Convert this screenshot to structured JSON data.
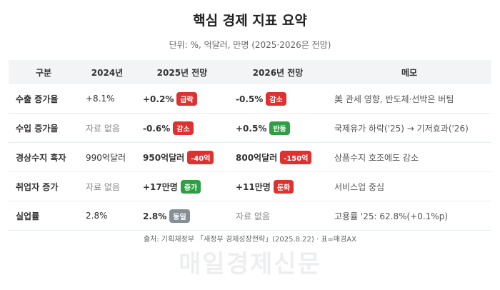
{
  "header": {
    "title": "핵심 경제 지표 요약",
    "subtitle": "단위: %, 억달러, 만명 (2025·2026은 전망)"
  },
  "table": {
    "columns": [
      "구분",
      "2024년",
      "2025년 전망",
      "2026년 전망",
      "메모"
    ],
    "rows": [
      {
        "label": "수출 증가율",
        "y2024": {
          "text": "+8.1%"
        },
        "y2025": {
          "text": "+0.2%",
          "badge": "급락",
          "badge_color": "#e03131"
        },
        "y2026": {
          "text": "-0.5%",
          "badge": "감소",
          "badge_color": "#e03131"
        },
        "memo": "美 관세 영향, 반도체·선박은 버팀"
      },
      {
        "label": "수입 증가율",
        "y2024": {
          "text": "자료 없음",
          "muted": true
        },
        "y2025": {
          "text": "-0.6%",
          "badge": "감소",
          "badge_color": "#e03131"
        },
        "y2026": {
          "text": "+0.5%",
          "badge": "반등",
          "badge_color": "#2f9e44"
        },
        "memo": "국제유가 하락('25) → 기저효과('26)"
      },
      {
        "label": "경상수지 흑자",
        "y2024": {
          "text": "990억달러"
        },
        "y2025": {
          "text": "950억달러",
          "badge": "-40억",
          "badge_color": "#e03131"
        },
        "y2026": {
          "text": "800억달러",
          "badge": "-150억",
          "badge_color": "#e03131"
        },
        "memo": "상품수지 호조에도 감소"
      },
      {
        "label": "취업자 증가",
        "y2024": {
          "text": "자료 없음",
          "muted": true
        },
        "y2025": {
          "text": "+17만명",
          "badge": "증가",
          "badge_color": "#2f9e44"
        },
        "y2026": {
          "text": "+11만명",
          "badge": "둔화",
          "badge_color": "#e03131"
        },
        "memo": "서비스업 중심"
      },
      {
        "label": "실업률",
        "y2024": {
          "text": "2.8%"
        },
        "y2025": {
          "text": "2.8%",
          "badge": "동일",
          "badge_color": "#868e96"
        },
        "y2026": {
          "text": "자료 없음",
          "muted": true
        },
        "memo": "고용률 '25: 62.8%(+0.1%p)"
      }
    ]
  },
  "footer": {
    "source": "출처: 기획재정부 「새정부 경제성장전략」(2025.8.22) · 표=매경AX",
    "watermark": "매일경제신문"
  }
}
